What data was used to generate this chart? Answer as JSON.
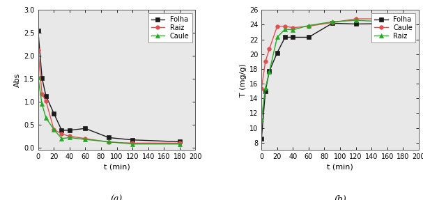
{
  "chart_a": {
    "xlabel": "t (min)",
    "ylabel": "Abs",
    "xlim": [
      0,
      200
    ],
    "ylim": [
      -0.05,
      3.0
    ],
    "xticks": [
      0,
      20,
      40,
      60,
      80,
      100,
      120,
      140,
      160,
      180,
      200
    ],
    "yticks": [
      0.0,
      0.5,
      1.0,
      1.5,
      2.0,
      2.5,
      3.0
    ],
    "label": "(a)",
    "series": [
      {
        "name": "Folha",
        "color": "#1a1a1a",
        "marker": "s",
        "x": [
          0,
          5,
          10,
          20,
          30,
          40,
          60,
          90,
          120,
          180
        ],
        "y": [
          2.55,
          1.52,
          1.13,
          0.75,
          0.38,
          0.38,
          0.42,
          0.22,
          0.17,
          0.13
        ]
      },
      {
        "name": "Raiz",
        "color": "#e05050",
        "marker": "o",
        "x": [
          0,
          5,
          10,
          20,
          30,
          40,
          60,
          90,
          120,
          180
        ],
        "y": [
          2.12,
          1.17,
          1.02,
          0.4,
          0.3,
          0.25,
          0.2,
          0.12,
          0.1,
          0.1
        ]
      },
      {
        "name": "Caule",
        "color": "#22aa22",
        "marker": "^",
        "x": [
          0,
          5,
          10,
          20,
          30,
          40,
          60,
          90,
          120,
          180
        ],
        "y": [
          1.53,
          0.95,
          0.65,
          0.4,
          0.2,
          0.22,
          0.18,
          0.13,
          0.08,
          0.08
        ]
      }
    ]
  },
  "chart_b": {
    "xlabel": "t (min)",
    "ylabel": "T (mg/g)",
    "xlim": [
      0,
      200
    ],
    "ylim": [
      7,
      26
    ],
    "xticks": [
      0,
      20,
      40,
      60,
      80,
      100,
      120,
      140,
      160,
      180,
      200
    ],
    "yticks": [
      8,
      10,
      12,
      14,
      16,
      18,
      20,
      22,
      24,
      26
    ],
    "label": "(b)",
    "series": [
      {
        "name": "Folha",
        "color": "#1a1a1a",
        "marker": "s",
        "x": [
          0,
          5,
          10,
          20,
          30,
          40,
          60,
          90,
          120,
          180
        ],
        "y": [
          8.5,
          15.0,
          17.7,
          20.2,
          22.3,
          22.3,
          22.3,
          24.2,
          24.1,
          24.2
        ]
      },
      {
        "name": "Caule",
        "color": "#e05050",
        "marker": "o",
        "x": [
          0,
          5,
          10,
          20,
          30,
          40,
          60,
          90,
          120,
          180
        ],
        "y": [
          15.3,
          19.0,
          20.7,
          23.8,
          23.8,
          23.6,
          23.8,
          24.3,
          24.8,
          24.8
        ]
      },
      {
        "name": "Raiz",
        "color": "#22aa22",
        "marker": "^",
        "x": [
          0,
          5,
          10,
          20,
          30,
          40,
          60,
          90,
          120,
          180
        ],
        "y": [
          11.2,
          15.4,
          17.6,
          22.3,
          23.4,
          23.3,
          23.9,
          24.4,
          24.6,
          24.3
        ]
      }
    ]
  },
  "bg_color": "#ffffff",
  "plot_bg_color": "#e8e8e8",
  "line_width": 1.0,
  "marker_size": 4,
  "tick_fontsize": 7,
  "label_fontsize": 8,
  "legend_fontsize": 7
}
